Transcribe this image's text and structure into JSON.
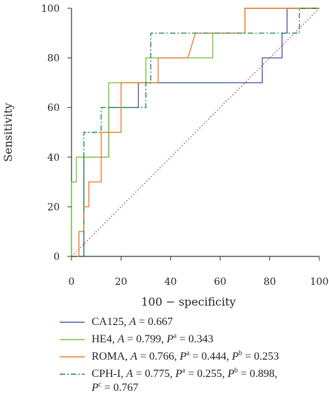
{
  "chart_data": {
    "type": "line",
    "xlabel": "100 − specificity",
    "ylabel": "Sensitivity",
    "xlim": [
      0,
      100
    ],
    "ylim": [
      0,
      100
    ],
    "x_ticks": [
      0,
      20,
      40,
      60,
      80,
      100
    ],
    "y_ticks": [
      0,
      20,
      40,
      60,
      80,
      100
    ],
    "grid": false,
    "legend_position": "bottom",
    "diagonal": {
      "x": [
        0,
        100
      ],
      "y": [
        0,
        100
      ],
      "color": "#d62728",
      "style": "dotted"
    },
    "series": [
      {
        "name": "CA125",
        "legend": [
          {
            "t": "CA125, "
          },
          {
            "t": "A",
            "i": true
          },
          {
            "t": " = 0.667"
          }
        ],
        "color": "#4b59a5",
        "style": "solid",
        "x": [
          0,
          5,
          5,
          12,
          15,
          15,
          27,
          27,
          34,
          77,
          77,
          85,
          85,
          87,
          87,
          100
        ],
        "y": [
          0,
          0,
          40,
          40,
          40,
          60,
          60,
          70,
          70,
          70,
          80,
          80,
          90,
          90,
          100,
          100
        ]
      },
      {
        "name": "HE4",
        "legend": [
          {
            "t": "HE4, "
          },
          {
            "t": "A",
            "i": true
          },
          {
            "t": " = 0.799, "
          },
          {
            "t": "P",
            "i": true
          },
          {
            "t": "a",
            "sup": true
          },
          {
            "t": " = 0.343"
          }
        ],
        "color": "#7ac143",
        "style": "solid",
        "x": [
          0,
          0,
          2,
          2,
          5,
          15,
          15,
          30,
          30,
          50,
          57,
          57,
          68,
          70,
          70,
          100
        ],
        "y": [
          0,
          30,
          30,
          40,
          40,
          40,
          70,
          70,
          80,
          80,
          80,
          90,
          90,
          90,
          100,
          100
        ]
      },
      {
        "name": "ROMA",
        "legend": [
          {
            "t": "ROMA, "
          },
          {
            "t": "A",
            "i": true
          },
          {
            "t": " = 0.766, "
          },
          {
            "t": "P",
            "i": true
          },
          {
            "t": "a",
            "sup": true
          },
          {
            "t": " = 0.444, "
          },
          {
            "t": "P",
            "i": true
          },
          {
            "t": "b",
            "sup": true
          },
          {
            "t": " = 0.253"
          }
        ],
        "color": "#f07c2e",
        "style": "solid",
        "x": [
          0,
          3,
          3,
          5,
          5,
          7,
          7,
          12,
          12,
          15,
          15,
          20,
          20,
          33,
          33,
          35,
          35,
          47,
          50,
          70,
          70,
          100
        ],
        "y": [
          0,
          0,
          10,
          10,
          20,
          20,
          30,
          30,
          50,
          50,
          50,
          50,
          70,
          70,
          70,
          70,
          80,
          80,
          90,
          90,
          100,
          100
        ]
      },
      {
        "name": "CPH-I",
        "legend": [
          {
            "t": "CPH-I, "
          },
          {
            "t": "A",
            "i": true
          },
          {
            "t": " = 0.775, "
          },
          {
            "t": "P",
            "i": true
          },
          {
            "t": "a",
            "sup": true
          },
          {
            "t": " = 0.255, "
          },
          {
            "t": "P",
            "i": true
          },
          {
            "t": "b",
            "sup": true
          },
          {
            "t": " = 0.898,"
          }
        ],
        "legend_line2": [
          {
            "t": "P",
            "i": true
          },
          {
            "t": "c",
            "sup": true
          },
          {
            "t": " = 0.767"
          }
        ],
        "color": "#1a8a4a",
        "style": "dashdot",
        "x": [
          0,
          5,
          5,
          12,
          12,
          15,
          15,
          30,
          30,
          32,
          32,
          90,
          90,
          92,
          92,
          100
        ],
        "y": [
          0,
          0,
          50,
          50,
          60,
          60,
          60,
          60,
          70,
          70,
          90,
          90,
          90,
          90,
          100,
          100
        ]
      }
    ]
  }
}
